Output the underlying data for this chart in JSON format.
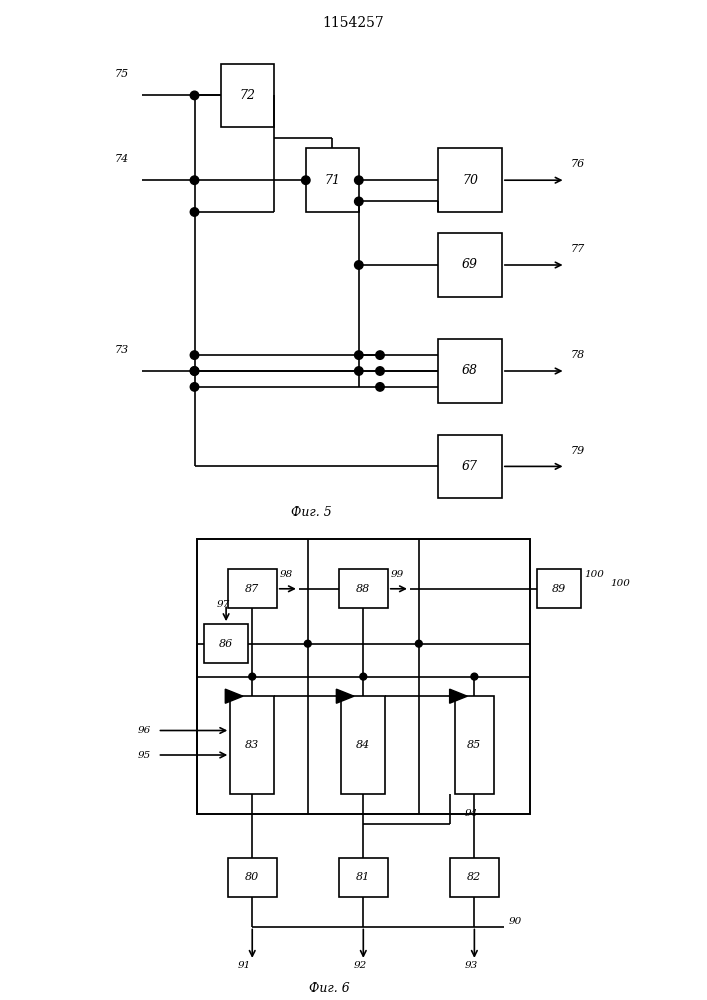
{
  "title": "1154257",
  "fig1_caption": "Фиг. 5",
  "fig2_caption": "Фиг. 6",
  "bg_color": "#ffffff",
  "line_color": "#000000",
  "box_color": "#ffffff",
  "box_edge": "#000000"
}
